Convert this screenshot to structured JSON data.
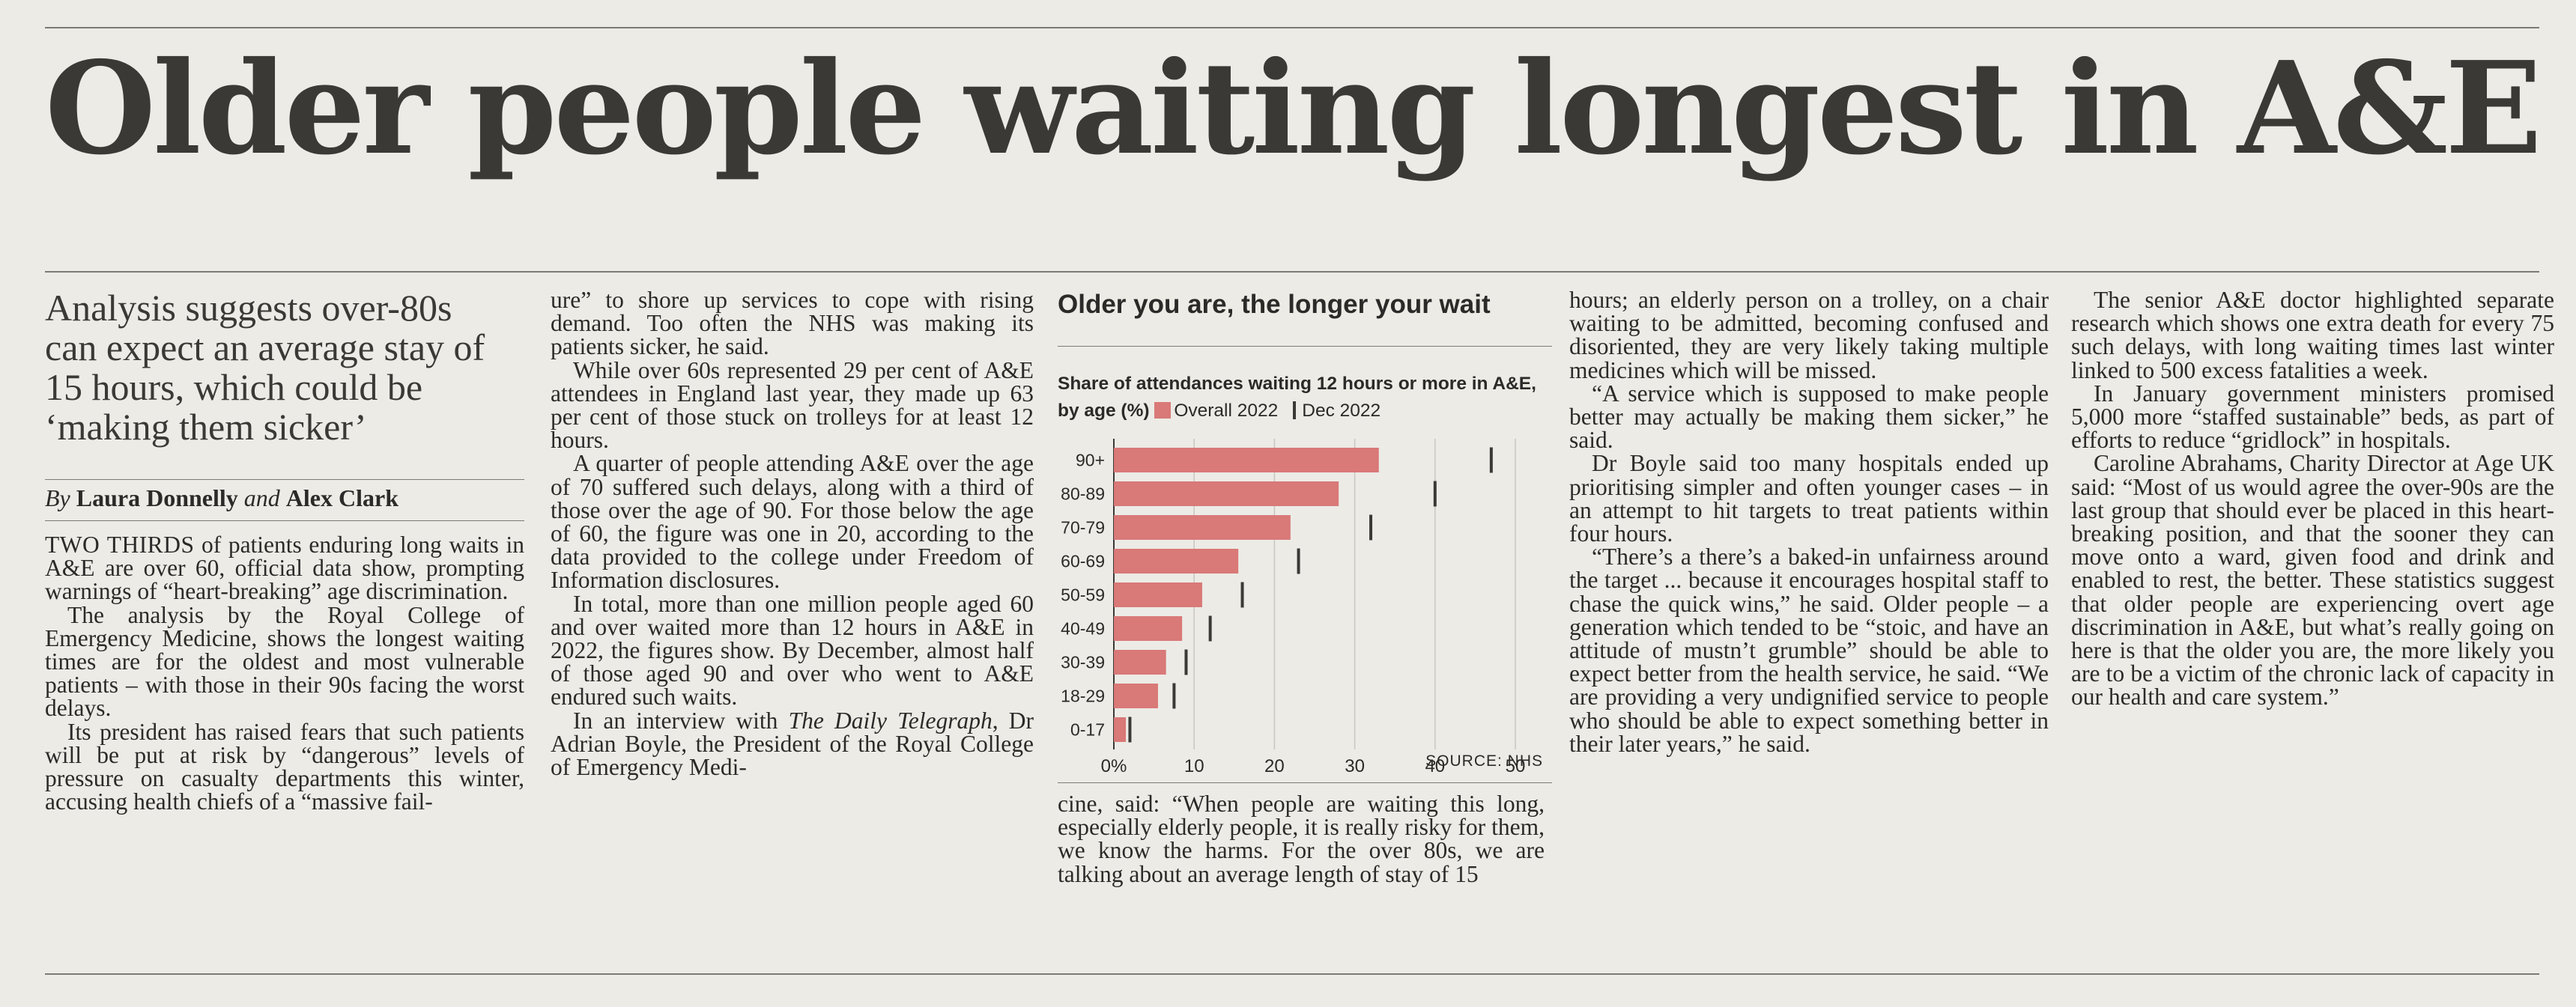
{
  "headline": "Older people waiting longest in A&E",
  "standfirst": "Analysis suggests over-80s can expect an average stay of 15 hours, which could be ‘making them sicker’",
  "byline": {
    "prefix": "By",
    "author1": "Laura Donnelly",
    "conj": "and",
    "author2": "Alex Clark"
  },
  "col1": {
    "lead": "TWO THIRDS",
    "p1": " of patients enduring long waits in A&E are over 60, official data show, prompting warnings of “heart-breaking” age discrimination.",
    "p2": "The analysis by the Royal College of Emergency Medicine, shows the longest waiting times are for the oldest and most vulnerable patients – with those in their 90s facing the worst delays.",
    "p3": "Its president has raised fears that such patients will be put at risk by “dangerous” levels of pressure on casualty departments this winter, accusing health chiefs of a “massive fail-"
  },
  "col2": {
    "p1": "ure” to shore up services to cope with rising demand. Too often the NHS was making its patients sicker, he said.",
    "p2": "While over 60s represented 29 per cent of A&E attendees in England last year, they made up 63 per cent of those stuck on trolleys for at least 12 hours.",
    "p3": "A quarter of people attending A&E over the age of 70 suffered such delays, along with a third of those over the age of 90. For those below the age of 60, the figure was one in 20, according to the data provided to the college under Freedom of Information disclosures.",
    "p4": "In total, more than one million people aged 60 and over waited more than 12 hours in A&E in 2022, the figures show. By December, almost half of those aged 90 and over who went to A&E endured such waits.",
    "p5_pre": "In an interview with ",
    "p5_italic": "The Daily Telegraph",
    "p5_post": ", Dr Adrian Boyle, the President of the Royal College of Emergency Medi-"
  },
  "col3_bottom": "cine, said: “When people are waiting this long, especially elderly people, it is really risky for them, we know the harms. For the over 80s, we are talking about an average length of stay of 15",
  "col4": {
    "p1": "hours; an elderly person on a trolley, on a chair waiting to be admitted, becoming confused and disoriented, they are very likely taking multiple medicines which will be missed.",
    "p2": "“A service which is supposed to make people better may actually be making them sicker,” he said.",
    "p3": "Dr Boyle said too many hospitals ended up prioritising simpler and often younger cases – in an attempt to hit targets to treat patients within four hours.",
    "p4": "“There’s a there’s a baked-in unfairness around the target ... because it encourages hospital staff to chase the quick wins,” he said. Older people – a generation which tended to be “stoic, and have an attitude of mustn’t grumble” should be able to expect better from the health service, he said. “We are providing a very undignified service to people who should be able to expect something better in their later years,” he said."
  },
  "col5": {
    "p1": "The senior A&E doctor highlighted separate research which shows one extra death for every 75 such delays, with long waiting times last winter linked to 500 excess fatalities a week.",
    "p2": "In January government ministers promised 5,000 more “staffed sustainable” beds, as part of efforts to reduce “gridlock” in hospitals.",
    "p3": "Caroline Abrahams, Charity Director at Age UK said: “Most of us would agree the over-90s are the last group that should ever be placed in this heart-breaking position, and that the sooner they can move onto a ward, given food and drink and enabled to rest, the better. These statistics suggest that older people are experiencing overt age discrimination in A&E, but what’s really going on here is that the older you are, the more likely you are to be a victim of the chronic lack of capacity in our health and care system.”"
  },
  "chart": {
    "title": "Older you are, the longer your wait",
    "subtitle": "Share of attendances waiting 12 hours or more in A&E, by age (%)",
    "source": "SOURCE: NHS",
    "bar_color": "#d97978",
    "tick_color": "#3a3936"
  },
  "chart_data": {
    "type": "bar",
    "orientation": "horizontal",
    "title": "Older you are, the longer your wait",
    "subtitle": "Share of attendances waiting 12 hours or more in A&E, by age (%)",
    "categories": [
      "90+",
      "80-89",
      "70-79",
      "60-69",
      "50-59",
      "40-49",
      "30-39",
      "18-29",
      "0-17"
    ],
    "series": [
      {
        "name": "Overall 2022",
        "mark": "bar",
        "values": [
          33,
          28,
          22,
          15.5,
          11,
          8.5,
          6.5,
          5.5,
          1.5
        ]
      },
      {
        "name": "Dec 2022",
        "mark": "tick",
        "values": [
          47,
          40,
          32,
          23,
          16,
          12,
          9,
          7.5,
          2
        ]
      }
    ],
    "xlim": [
      0,
      50
    ],
    "xticks": [
      "0%",
      "10",
      "20",
      "30",
      "40",
      "50"
    ],
    "grid": true,
    "legend": "top"
  }
}
